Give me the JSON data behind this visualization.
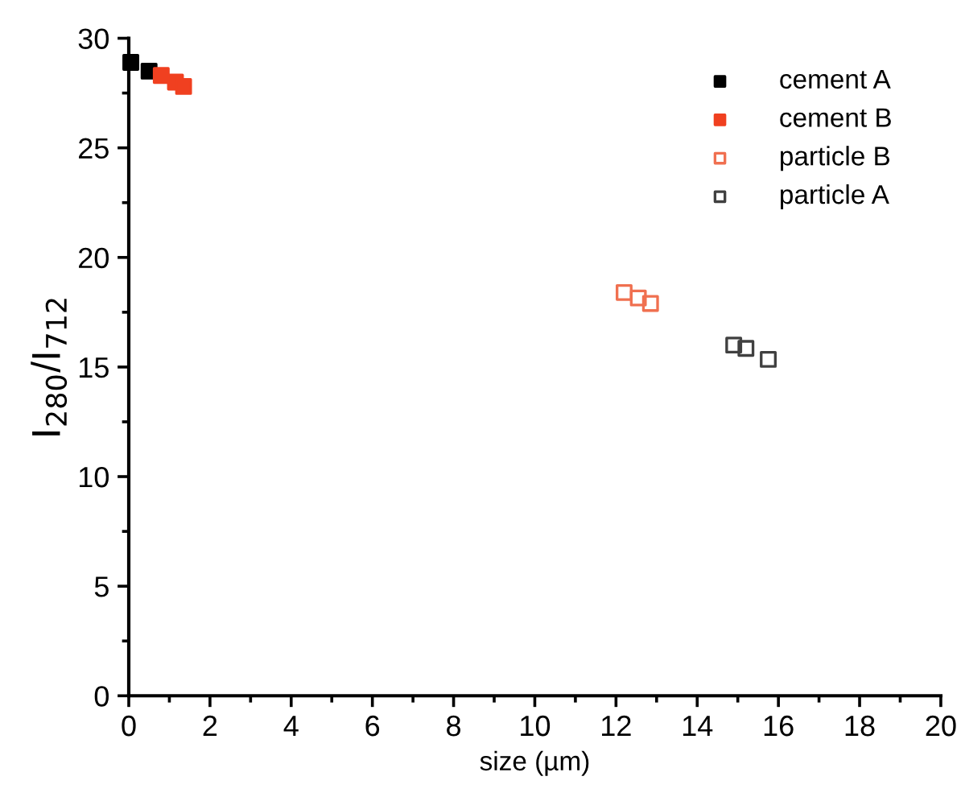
{
  "chart_data": {
    "type": "scatter",
    "xlabel": "size (µm)",
    "ylabel": "I$_{280}$/I$_{712}$",
    "xlim": [
      0,
      20
    ],
    "ylim": [
      0,
      30
    ],
    "xticks": [
      0,
      2,
      4,
      6,
      8,
      10,
      12,
      14,
      16,
      18,
      20
    ],
    "yticks": [
      0,
      5,
      10,
      15,
      20,
      25,
      30
    ],
    "legend": "top right",
    "grid": false,
    "series": [
      {
        "name": "cement A",
        "color": "#000000",
        "marker": "square",
        "x": [
          0.05,
          0.5
        ],
        "values": [
          28.9,
          28.5
        ]
      },
      {
        "name": "cement B",
        "color": "#f04020",
        "marker": "square",
        "x": [
          0.8,
          1.15,
          1.35
        ],
        "values": [
          28.3,
          28.0,
          27.8
        ]
      },
      {
        "name": "particle B",
        "color": "#f07050",
        "marker": "square-open",
        "x": [
          12.2,
          12.55,
          12.85
        ],
        "values": [
          18.4,
          18.15,
          17.9
        ]
      },
      {
        "name": "particle A",
        "color": "#404040",
        "marker": "square-open",
        "x": [
          14.9,
          15.2,
          15.75
        ],
        "values": [
          16.0,
          15.85,
          15.35
        ]
      }
    ]
  }
}
